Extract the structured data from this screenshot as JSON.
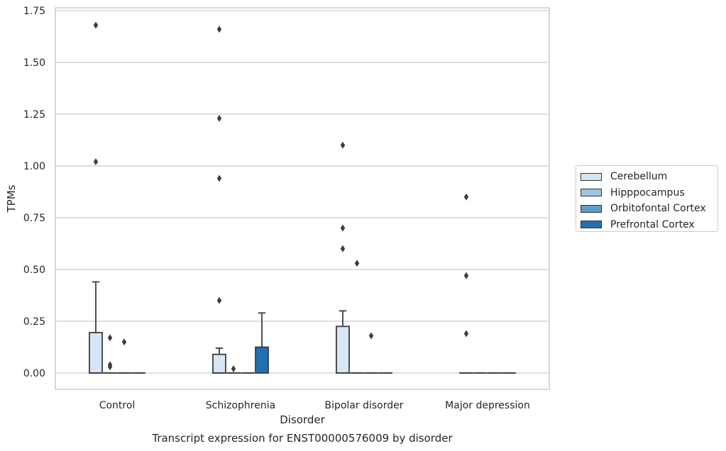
{
  "chart_data": {
    "type": "box",
    "title": "Transcript expression for ENST00000576009 by disorder",
    "xlabel": "Disorder",
    "ylabel": "TPMs",
    "categories": [
      "Control",
      "Schizophrenia",
      "Bipolar disorder",
      "Major depression"
    ],
    "ylim": [
      -0.08,
      1.76
    ],
    "yticks": [
      "0.00",
      "0.25",
      "0.50",
      "0.75",
      "1.00",
      "1.25",
      "1.50",
      "1.75"
    ],
    "grid": "horizontal",
    "legend_position": "right",
    "series": [
      {
        "name": "Cerebellum",
        "color": "#d6e6f4",
        "boxes": [
          {
            "category": "Control",
            "q1": 0.0,
            "median": 0.0,
            "q3": 0.195,
            "whisker_low": 0.0,
            "whisker_high": 0.44,
            "outliers": [
              1.02,
              1.68
            ]
          },
          {
            "category": "Schizophrenia",
            "q1": 0.0,
            "median": 0.0,
            "q3": 0.09,
            "whisker_low": 0.0,
            "whisker_high": 0.12,
            "outliers": [
              0.35,
              0.94,
              1.23,
              1.66
            ]
          },
          {
            "category": "Bipolar disorder",
            "q1": 0.0,
            "median": 0.0,
            "q3": 0.225,
            "whisker_low": 0.0,
            "whisker_high": 0.3,
            "outliers": [
              0.6,
              0.7,
              1.1
            ]
          },
          {
            "category": "Major depression",
            "q1": 0.0,
            "median": 0.0,
            "q3": 0.0,
            "whisker_low": 0.0,
            "whisker_high": 0.0,
            "outliers": [
              0.19,
              0.47,
              0.85
            ]
          }
        ]
      },
      {
        "name": "Hipppocampus",
        "color": "#9ac8e0",
        "boxes": [
          {
            "category": "Control",
            "q1": 0.0,
            "median": 0.0,
            "q3": 0.0,
            "whisker_low": 0.0,
            "whisker_high": 0.0,
            "outliers": [
              0.03,
              0.04,
              0.17
            ]
          },
          {
            "category": "Schizophrenia",
            "q1": 0.0,
            "median": 0.0,
            "q3": 0.0,
            "whisker_low": 0.0,
            "whisker_high": 0.0,
            "outliers": [
              0.02
            ]
          },
          {
            "category": "Bipolar disorder",
            "q1": 0.0,
            "median": 0.0,
            "q3": 0.0,
            "whisker_low": 0.0,
            "whisker_high": 0.0,
            "outliers": [
              0.53
            ]
          },
          {
            "category": "Major depression",
            "q1": 0.0,
            "median": 0.0,
            "q3": 0.0,
            "whisker_low": 0.0,
            "whisker_high": 0.0,
            "outliers": []
          }
        ]
      },
      {
        "name": "Orbitofontal Cortex",
        "color": "#5a9ec9",
        "boxes": [
          {
            "category": "Control",
            "q1": 0.0,
            "median": 0.0,
            "q3": 0.0,
            "whisker_low": 0.0,
            "whisker_high": 0.0,
            "outliers": [
              0.15
            ]
          },
          {
            "category": "Schizophrenia",
            "q1": 0.0,
            "median": 0.0,
            "q3": 0.0,
            "whisker_low": 0.0,
            "whisker_high": 0.0,
            "outliers": []
          },
          {
            "category": "Bipolar disorder",
            "q1": 0.0,
            "median": 0.0,
            "q3": 0.0,
            "whisker_low": 0.0,
            "whisker_high": 0.0,
            "outliers": [
              0.18
            ]
          },
          {
            "category": "Major depression",
            "q1": 0.0,
            "median": 0.0,
            "q3": 0.0,
            "whisker_low": 0.0,
            "whisker_high": 0.0,
            "outliers": []
          }
        ]
      },
      {
        "name": "Prefrontal Cortex",
        "color": "#2070b4",
        "boxes": [
          {
            "category": "Control",
            "q1": 0.0,
            "median": 0.0,
            "q3": 0.0,
            "whisker_low": 0.0,
            "whisker_high": 0.0,
            "outliers": []
          },
          {
            "category": "Schizophrenia",
            "q1": 0.0,
            "median": 0.0,
            "q3": 0.125,
            "whisker_low": 0.0,
            "whisker_high": 0.29,
            "outliers": []
          },
          {
            "category": "Bipolar disorder",
            "q1": 0.0,
            "median": 0.0,
            "q3": 0.0,
            "whisker_low": 0.0,
            "whisker_high": 0.0,
            "outliers": []
          },
          {
            "category": "Major depression",
            "q1": 0.0,
            "median": 0.0,
            "q3": 0.0,
            "whisker_low": 0.0,
            "whisker_high": 0.0,
            "outliers": []
          }
        ]
      }
    ]
  }
}
